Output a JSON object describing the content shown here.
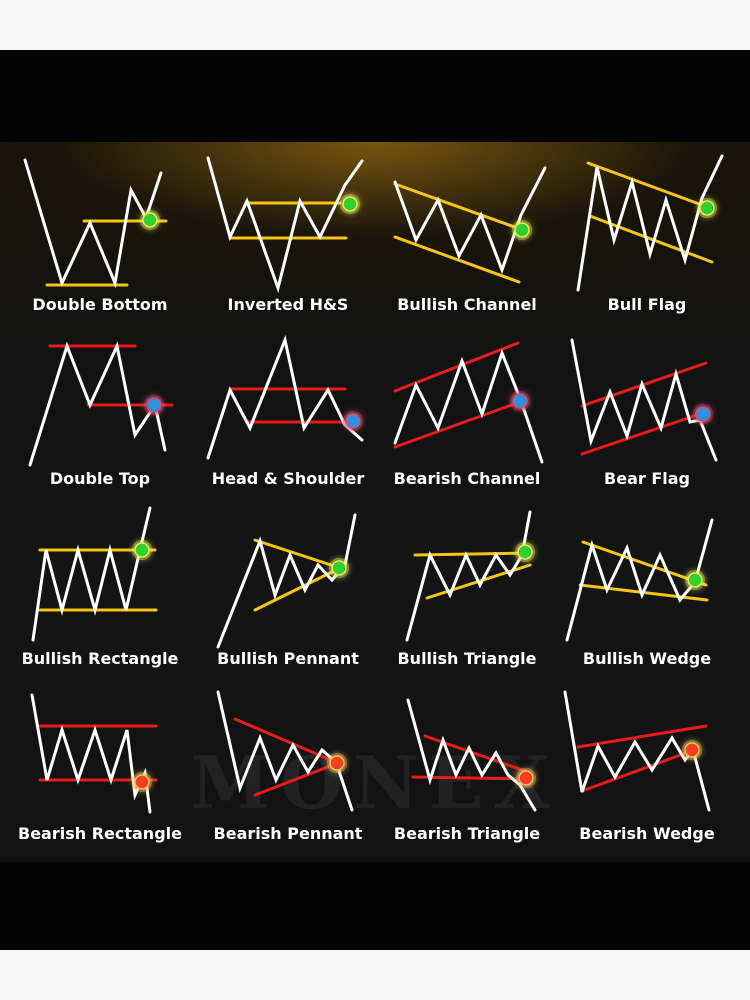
{
  "watermark": "MONEX",
  "colors": {
    "background": "#040404",
    "price_line": "#ffffff",
    "bullish_level": "#f5c518",
    "bearish_level": "#e81c1c",
    "bullish_marker": "#2fd12f",
    "bearish_top_marker": "#2f8fe0",
    "bearish_bottom_marker": "#f04020"
  },
  "patterns": [
    {
      "name": "Double Bottom",
      "level_color": "yellow",
      "marker": "green-dot-icon"
    },
    {
      "name": "Inverted H&S",
      "level_color": "yellow",
      "marker": "green-dot-icon"
    },
    {
      "name": "Bullish Channel",
      "level_color": "yellow",
      "marker": "green-dot-icon"
    },
    {
      "name": "Bull Flag",
      "level_color": "yellow",
      "marker": "green-dot-icon"
    },
    {
      "name": "Double Top",
      "level_color": "red",
      "marker": "blue-dot-icon"
    },
    {
      "name": "Head & Shoulder",
      "level_color": "red",
      "marker": "blue-dot-icon"
    },
    {
      "name": "Bearish Channel",
      "level_color": "red",
      "marker": "blue-dot-icon"
    },
    {
      "name": "Bear Flag",
      "level_color": "red",
      "marker": "blue-dot-icon"
    },
    {
      "name": "Bullish Rectangle",
      "level_color": "yellow",
      "marker": "green-dot-icon"
    },
    {
      "name": "Bullish Pennant",
      "level_color": "yellow",
      "marker": "green-dot-icon"
    },
    {
      "name": "Bullish Triangle",
      "level_color": "yellow",
      "marker": "green-dot-icon"
    },
    {
      "name": "Bullish Wedge",
      "level_color": "yellow",
      "marker": "green-dot-icon"
    },
    {
      "name": "Bearish Rectangle",
      "level_color": "red",
      "marker": "orange-dot-icon"
    },
    {
      "name": "Bearish Pennant",
      "level_color": "red",
      "marker": "orange-dot-icon"
    },
    {
      "name": "Bearish Triangle",
      "level_color": "red",
      "marker": "orange-dot-icon"
    },
    {
      "name": "Bearish Wedge",
      "level_color": "red",
      "marker": "orange-dot-icon"
    }
  ]
}
